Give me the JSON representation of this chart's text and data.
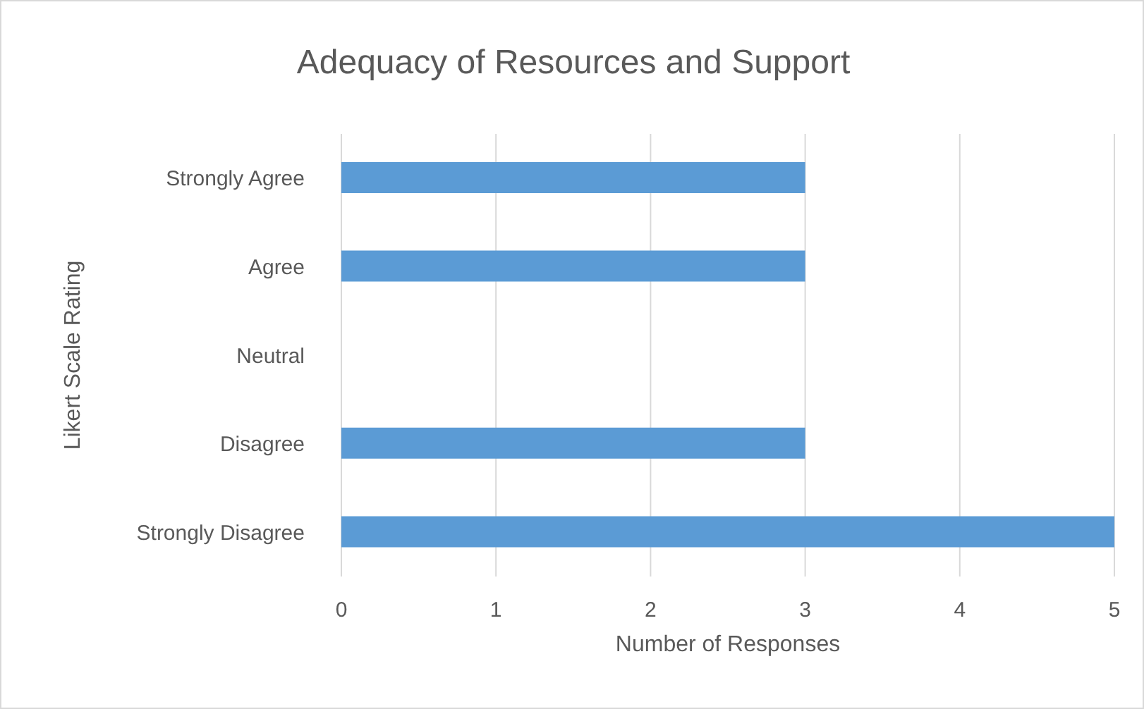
{
  "chart_data": {
    "type": "bar",
    "orientation": "horizontal",
    "title": "Adequacy of Resources and Support",
    "xlabel": "Number of Responses",
    "ylabel": "Likert Scale Rating",
    "categories": [
      "Strongly Agree",
      "Agree",
      "Neutral",
      "Disagree",
      "Strongly Disagree"
    ],
    "values": [
      3,
      3,
      0,
      3,
      5
    ],
    "color": "#5b9bd5",
    "xlim": [
      0,
      5
    ],
    "xticks": [
      0,
      1,
      2,
      3,
      4,
      5
    ],
    "grid": "x"
  }
}
